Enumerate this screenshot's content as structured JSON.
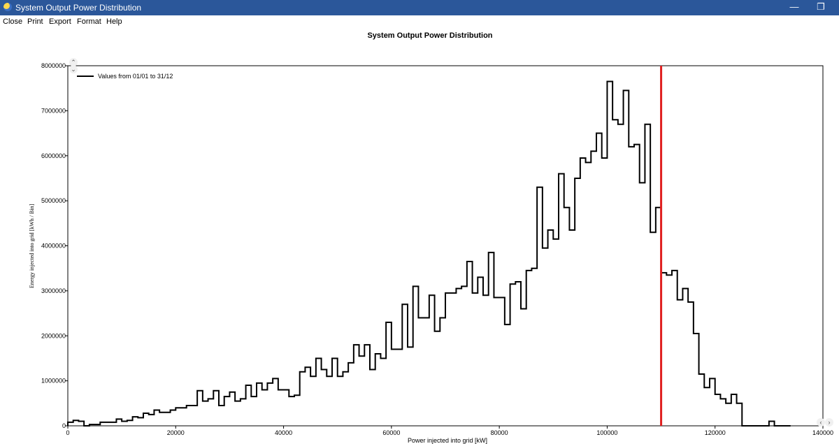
{
  "window": {
    "title": "System Output Power Distribution",
    "minimize_glyph": "—",
    "restore_glyph": "❐"
  },
  "menu": [
    "Close",
    "Print",
    "Export",
    "Format",
    "Help"
  ],
  "chart_data": {
    "type": "line",
    "title": "System Output Power Distribution",
    "xlabel": "Power injected into grid [kW]",
    "ylabel": "Energy injected into grid [kWh / Bin]",
    "xlim": [
      0,
      140000
    ],
    "ylim": [
      0,
      8000000
    ],
    "xticks": [
      0,
      20000,
      40000,
      60000,
      80000,
      100000,
      120000,
      140000
    ],
    "yticks": [
      0,
      1000000,
      2000000,
      3000000,
      4000000,
      5000000,
      6000000,
      7000000,
      8000000
    ],
    "legend_placement": "top-left",
    "grid": false,
    "series": [
      {
        "name": "Values from 01/01 to 31/12",
        "color": "#000000",
        "step": true,
        "bin_width": 1000,
        "x_start": 0,
        "values": [
          80000,
          120000,
          100000,
          0,
          30000,
          30000,
          80000,
          80000,
          80000,
          150000,
          100000,
          120000,
          200000,
          180000,
          280000,
          250000,
          350000,
          300000,
          300000,
          350000,
          400000,
          400000,
          450000,
          450000,
          780000,
          550000,
          600000,
          780000,
          450000,
          650000,
          750000,
          550000,
          600000,
          900000,
          650000,
          950000,
          800000,
          950000,
          1050000,
          800000,
          800000,
          650000,
          680000,
          1200000,
          1300000,
          1100000,
          1500000,
          1250000,
          1100000,
          1500000,
          1100000,
          1200000,
          1400000,
          1800000,
          1550000,
          1800000,
          1250000,
          1600000,
          1500000,
          2300000,
          1700000,
          1700000,
          2700000,
          1750000,
          3100000,
          2400000,
          2400000,
          2900000,
          2100000,
          2400000,
          2950000,
          2950000,
          3050000,
          3100000,
          3650000,
          2950000,
          3300000,
          2900000,
          3850000,
          2850000,
          2850000,
          2250000,
          3150000,
          3200000,
          2600000,
          3450000,
          3500000,
          5300000,
          3950000,
          4350000,
          4150000,
          5600000,
          4850000,
          4350000,
          5500000,
          5950000,
          5850000,
          6100000,
          6500000,
          5950000,
          7650000,
          6800000,
          6700000,
          7450000,
          6200000,
          6250000,
          5400000,
          6700000,
          4300000,
          4850000,
          3400000,
          3350000,
          3450000,
          2800000,
          3050000,
          2750000,
          2050000,
          1150000,
          850000,
          1050000,
          700000,
          600000,
          500000,
          700000,
          500000,
          0,
          0,
          0,
          0,
          0,
          100000,
          0,
          0,
          0
        ]
      }
    ],
    "reference_line": {
      "x": 110000,
      "color": "#e02020"
    }
  }
}
